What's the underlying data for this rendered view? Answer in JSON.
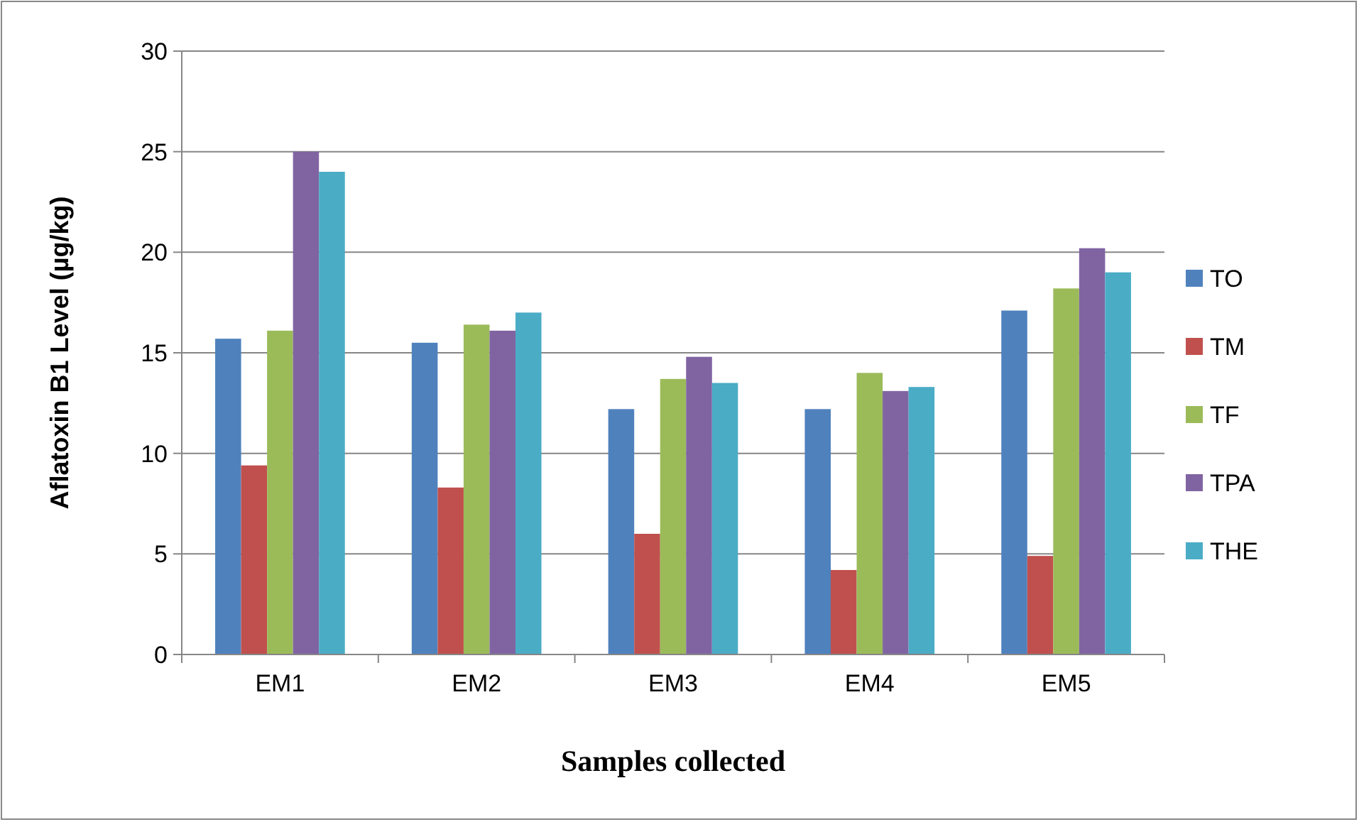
{
  "chart_data": {
    "type": "bar",
    "xlabel": "Samples collected",
    "ylabel": "Aflatoxin  B1 Level (µg/kg)",
    "categories": [
      "EM1",
      "EM2",
      "EM3",
      "EM4",
      "EM5"
    ],
    "series": [
      {
        "name": "TO",
        "color": "#4f81bd",
        "values": [
          15.7,
          15.5,
          12.2,
          12.2,
          17.1
        ]
      },
      {
        "name": "TM",
        "color": "#c0504d",
        "values": [
          9.4,
          8.3,
          6.0,
          4.2,
          4.9
        ]
      },
      {
        "name": "TF",
        "color": "#9bbb59",
        "values": [
          16.1,
          16.4,
          13.7,
          14.0,
          18.2
        ]
      },
      {
        "name": "TPA",
        "color": "#8064a2",
        "values": [
          25.0,
          16.1,
          14.8,
          13.1,
          20.2
        ]
      },
      {
        "name": "THE",
        "color": "#4bacc6",
        "values": [
          24.0,
          17.0,
          13.5,
          13.3,
          19.0
        ]
      }
    ],
    "ylim": [
      0,
      30
    ],
    "yticks": [
      0,
      5,
      10,
      15,
      20,
      25,
      30
    ],
    "grid": "y",
    "legend": "right"
  }
}
